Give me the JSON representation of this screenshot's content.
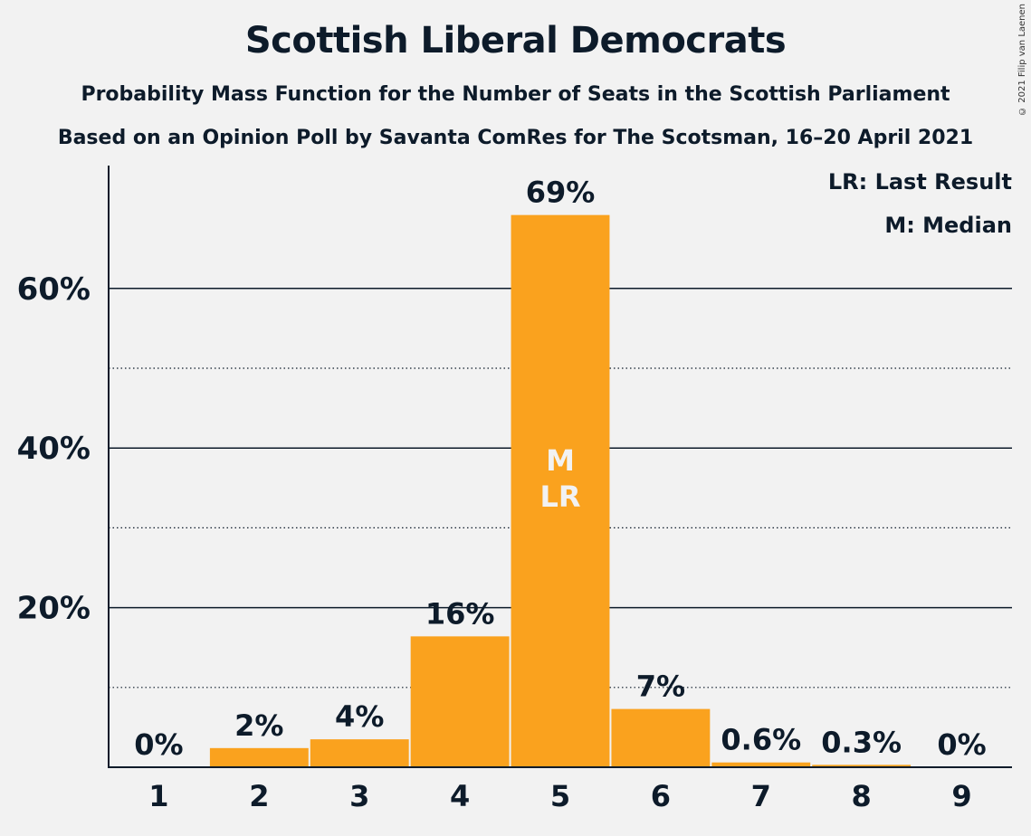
{
  "copyright": "© 2021 Filip van Laenen",
  "chart_data": {
    "type": "bar",
    "title": "Scottish Liberal Democrats",
    "subtitle": "Probability Mass Function for the Number of Seats in the Scottish Parliament",
    "subtitle2": "Based on an Opinion Poll by Savanta ComRes for The Scotsman, 16–20 April 2021",
    "categories": [
      "1",
      "2",
      "3",
      "4",
      "5",
      "6",
      "7",
      "8",
      "9"
    ],
    "values": [
      0,
      2.4,
      3.5,
      16.4,
      69.2,
      7.3,
      0.6,
      0.3,
      0
    ],
    "data_labels": [
      "0%",
      "2%",
      "4%",
      "16%",
      "69%",
      "7%",
      "0.6%",
      "0.3%",
      "0%"
    ],
    "inside_labels": {
      "4": [
        "M",
        "LR"
      ]
    },
    "ylim": [
      0,
      75
    ],
    "yticks": [
      20,
      40,
      60
    ],
    "ytick_labels": [
      "20%",
      "40%",
      "60%"
    ],
    "minor_gridlines": [
      10,
      30,
      50
    ],
    "legend": [
      "LR: Last Result",
      "M: Median"
    ],
    "legend_position": "top-right",
    "colors": {
      "bar": "#faa21e",
      "text": "#0d1b2a",
      "inside_label": "#f2f2f2",
      "background": "#f2f2f2"
    }
  }
}
